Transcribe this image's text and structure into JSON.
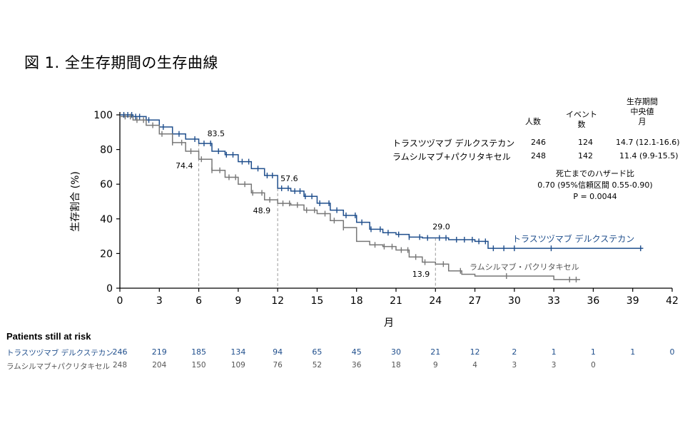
{
  "figure_title": "図 1. 全生存期間の生存曲線",
  "colors": {
    "td": "#1f4e8c",
    "ram": "#777777",
    "guide": "#999999"
  },
  "legend": {
    "headers": {
      "n": "人数",
      "events": "イベント\n数",
      "median": "生存期間\n中央値\n月"
    },
    "rows": [
      {
        "name": "トラスツヅマブ デルクステカン",
        "n": "246",
        "events": "124",
        "median": "14.7 (12.1-16.6)"
      },
      {
        "name": "ラムシルマブ+パクリタキセル",
        "n": "248",
        "events": "142",
        "median": "11.4 (9.9-15.5)"
      }
    ]
  },
  "hazard": {
    "line1": "死亡までのハザード比",
    "line2": "0.70 (95%信頼区間 0.55-0.90)",
    "line3": "P = 0.0044"
  },
  "risk_table": {
    "title": "Patients still at risk",
    "rows": [
      {
        "name": "トラスツヅマブ デルクステカン",
        "values": [
          "246",
          "219",
          "185",
          "134",
          "94",
          "65",
          "45",
          "30",
          "21",
          "12",
          "2",
          "1",
          "1",
          "1",
          "0"
        ]
      },
      {
        "name": "ラムシルマブ+パクリタキセル",
        "values": [
          "248",
          "204",
          "150",
          "109",
          "76",
          "52",
          "36",
          "18",
          "9",
          "4",
          "3",
          "3",
          "0"
        ]
      }
    ]
  },
  "chart_data": {
    "type": "line",
    "title": "",
    "xlabel": "月",
    "ylabel": "生存割合 (%)",
    "xlim": [
      0,
      42
    ],
    "ylim": [
      0,
      100
    ],
    "xticks": [
      0,
      3,
      6,
      9,
      12,
      15,
      18,
      21,
      24,
      27,
      30,
      33,
      36,
      39,
      42
    ],
    "yticks": [
      0,
      20,
      40,
      60,
      80,
      100
    ],
    "grid": false,
    "series": [
      {
        "name": "トラスツヅマブ デルクステカン",
        "color": "#1f4e8c",
        "x": [
          0,
          1,
          2,
          3,
          4,
          5,
          6,
          7,
          8,
          9,
          10,
          11,
          12,
          13,
          14,
          15,
          16,
          17,
          18,
          19,
          20,
          21,
          22,
          23,
          24,
          25,
          26,
          27,
          28,
          32,
          35,
          39.8
        ],
        "y": [
          100,
          99,
          97,
          93,
          89,
          86,
          83.5,
          79,
          77,
          73,
          69,
          65,
          57.6,
          56,
          53,
          49,
          45,
          42,
          38,
          34,
          32,
          31,
          29.5,
          29,
          29.0,
          28,
          28,
          27,
          23,
          23,
          23,
          23
        ]
      },
      {
        "name": "ラムシルマブ+パクリタキセル",
        "color": "#777777",
        "x": [
          0,
          1,
          2,
          3,
          4,
          5,
          6,
          7,
          8,
          9,
          10,
          11,
          12,
          13,
          14,
          15,
          16,
          17,
          18,
          19,
          20,
          21,
          22,
          23,
          24,
          25,
          26,
          27,
          28,
          29,
          30,
          31,
          32,
          33,
          34,
          35
        ],
        "y": [
          99,
          97,
          94,
          89,
          84,
          79,
          74.4,
          68,
          64,
          60,
          55,
          51,
          48.9,
          48,
          45,
          43,
          39,
          35,
          27,
          25,
          24,
          22,
          18,
          15,
          13.9,
          10,
          8,
          7,
          7,
          7,
          7,
          7,
          7,
          5,
          5,
          5
        ]
      }
    ],
    "censor": {
      "td_x": [
        0.3,
        0.6,
        0.9,
        1.2,
        1.5,
        2.2,
        3.3,
        4.5,
        5.7,
        6.4,
        6.9,
        7.5,
        8.1,
        8.6,
        9.3,
        9.8,
        10.5,
        11.2,
        11.6,
        12.3,
        12.8,
        13.3,
        13.7,
        14.1,
        14.6,
        15.2,
        15.9,
        16.5,
        17.2,
        17.9,
        18.4,
        19.1,
        19.8,
        20.4,
        21.2,
        22.0,
        22.8,
        23.4,
        24.3,
        24.8,
        25.6,
        26.2,
        26.8,
        27.3,
        27.8,
        28.4,
        29.2,
        30.0,
        32.8,
        39.6
      ],
      "ram_x": [
        0.4,
        0.8,
        1.3,
        1.8,
        2.5,
        3.2,
        4.0,
        4.7,
        5.4,
        6.2,
        7.0,
        7.6,
        8.3,
        8.8,
        9.5,
        10.1,
        10.8,
        11.4,
        12.4,
        12.9,
        13.5,
        14.2,
        14.8,
        15.6,
        16.3,
        17.0,
        19.4,
        20.1,
        20.7,
        21.4,
        21.9,
        22.5,
        23.2,
        24.6,
        25.9,
        29.4,
        34.2,
        34.7
      ]
    },
    "annotations": [
      {
        "x": 6,
        "y": 83.5,
        "label": "83.5",
        "series": "td"
      },
      {
        "x": 6,
        "y": 74.4,
        "label": "74.4",
        "series": "ram"
      },
      {
        "x": 12,
        "y": 57.6,
        "label": "57.6",
        "series": "td"
      },
      {
        "x": 12,
        "y": 48.9,
        "label": "48.9",
        "series": "ram"
      },
      {
        "x": 24,
        "y": 29.0,
        "label": "29.0",
        "series": "td"
      },
      {
        "x": 24,
        "y": 13.9,
        "label": "13.9",
        "series": "ram"
      }
    ],
    "series_labels": [
      {
        "label": "トラスツヅマブ デルクステカン",
        "series": "td"
      },
      {
        "label": "ラムシルマブ・パクリタキセル",
        "series": "ram"
      }
    ]
  }
}
